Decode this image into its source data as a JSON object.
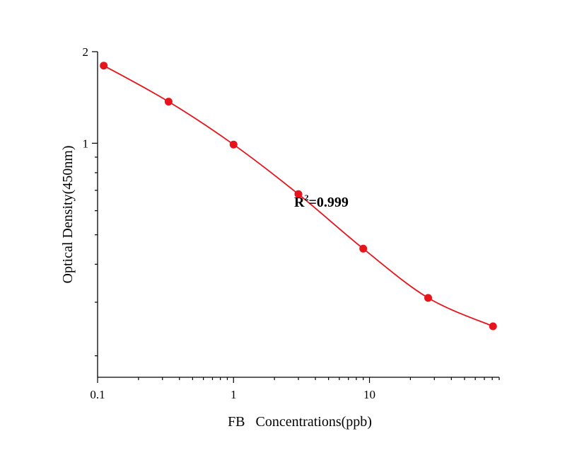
{
  "chart_data": {
    "type": "scatter",
    "title": "",
    "xlabel": "FB   Concentrations(ppb)",
    "ylabel": "Optical Density(450nm)",
    "x_scale": "log",
    "y_scale": "log",
    "xlim": [
      0.1,
      90
    ],
    "ylim": [
      0.17,
      2
    ],
    "x_ticks": [
      0.1,
      1,
      10
    ],
    "x_tick_labels": [
      "0.1",
      "1",
      "10"
    ],
    "y_ticks": [
      1,
      2
    ],
    "y_tick_labels": [
      "1",
      "2"
    ],
    "grid": false,
    "legend": "none",
    "annotation": {
      "prefix": "R",
      "superscript": "2",
      "suffix": "=0.999"
    },
    "color": "#e8141b",
    "series": [
      {
        "x": [
          0.111,
          0.333,
          1,
          3,
          9,
          27,
          81
        ],
        "y": [
          1.8,
          1.37,
          0.99,
          0.68,
          0.45,
          0.31,
          0.25
        ],
        "fit": "smooth"
      }
    ]
  }
}
